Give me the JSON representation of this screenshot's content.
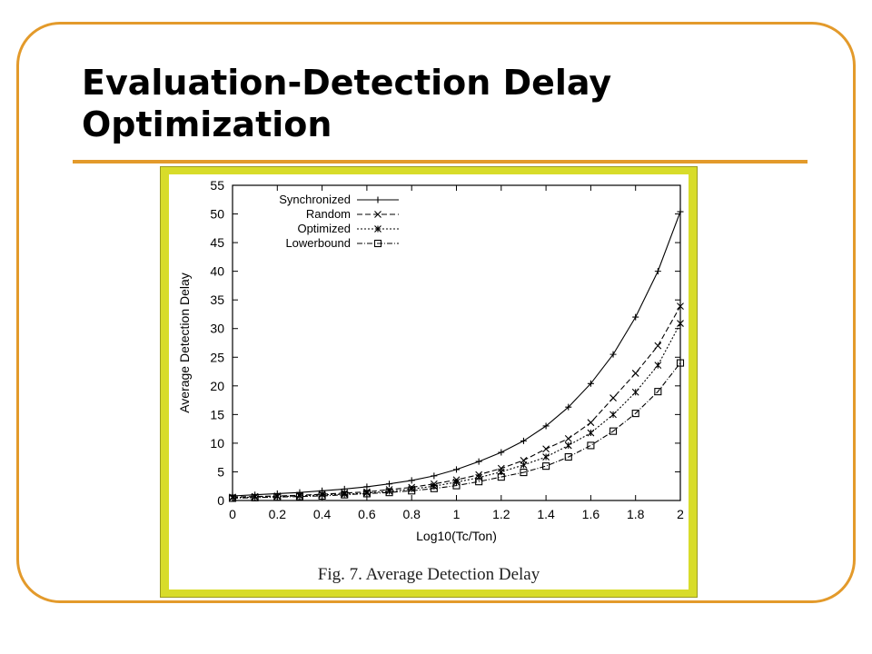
{
  "slide": {
    "title_line1": "Evaluation-Detection Delay",
    "title_line2": "Optimization",
    "caption": "Fig. 7.    Average Detection Delay"
  },
  "colors": {
    "accent": "#e39a2b",
    "panel": "#d8dc2a",
    "line": "#000000"
  },
  "chart_data": {
    "type": "line",
    "title": "",
    "xlabel": "Log10(Tc/Ton)",
    "ylabel": "Average Detection Delay",
    "xlim": [
      0,
      2
    ],
    "ylim": [
      0,
      55
    ],
    "xticks": [
      0,
      0.2,
      0.4,
      0.6,
      0.8,
      1,
      1.2,
      1.4,
      1.6,
      1.8,
      2
    ],
    "yticks": [
      0,
      5,
      10,
      15,
      20,
      25,
      30,
      35,
      40,
      45,
      50,
      55
    ],
    "legend_position": "top-left",
    "grid": false,
    "x": [
      0,
      0.1,
      0.2,
      0.3,
      0.4,
      0.5,
      0.6,
      0.7,
      0.8,
      0.9,
      1.0,
      1.1,
      1.2,
      1.3,
      1.4,
      1.5,
      1.6,
      1.7,
      1.8,
      1.9,
      2.0
    ],
    "series": [
      {
        "name": "Synchronized",
        "marker": "plus",
        "dash": "solid",
        "values": [
          0.8,
          1.0,
          1.2,
          1.4,
          1.7,
          2.0,
          2.4,
          2.9,
          3.5,
          4.3,
          5.4,
          6.8,
          8.4,
          10.4,
          13.0,
          16.3,
          20.4,
          25.5,
          32.0,
          40.0,
          50.4
        ]
      },
      {
        "name": "Random",
        "marker": "x",
        "dash": "dashed",
        "values": [
          0.6,
          0.7,
          0.8,
          0.9,
          1.1,
          1.3,
          1.5,
          1.9,
          2.3,
          2.9,
          3.6,
          4.5,
          5.6,
          7.0,
          9.0,
          10.8,
          13.6,
          17.9,
          22.2,
          27.0,
          33.9
        ]
      },
      {
        "name": "Optimized",
        "marker": "asterisk",
        "dash": "dotted",
        "values": [
          0.5,
          0.6,
          0.7,
          0.8,
          1.0,
          1.1,
          1.3,
          1.6,
          2.0,
          2.5,
          3.2,
          4.0,
          5.0,
          6.2,
          7.6,
          9.6,
          11.8,
          15.0,
          18.9,
          23.6,
          30.9
        ]
      },
      {
        "name": "Lowerbound",
        "marker": "square",
        "dash": "dashdot",
        "values": [
          0.4,
          0.5,
          0.6,
          0.7,
          0.8,
          1.0,
          1.2,
          1.4,
          1.7,
          2.1,
          2.6,
          3.3,
          4.1,
          4.9,
          6.0,
          7.6,
          9.6,
          12.1,
          15.2,
          19.0,
          24.0
        ]
      }
    ]
  }
}
